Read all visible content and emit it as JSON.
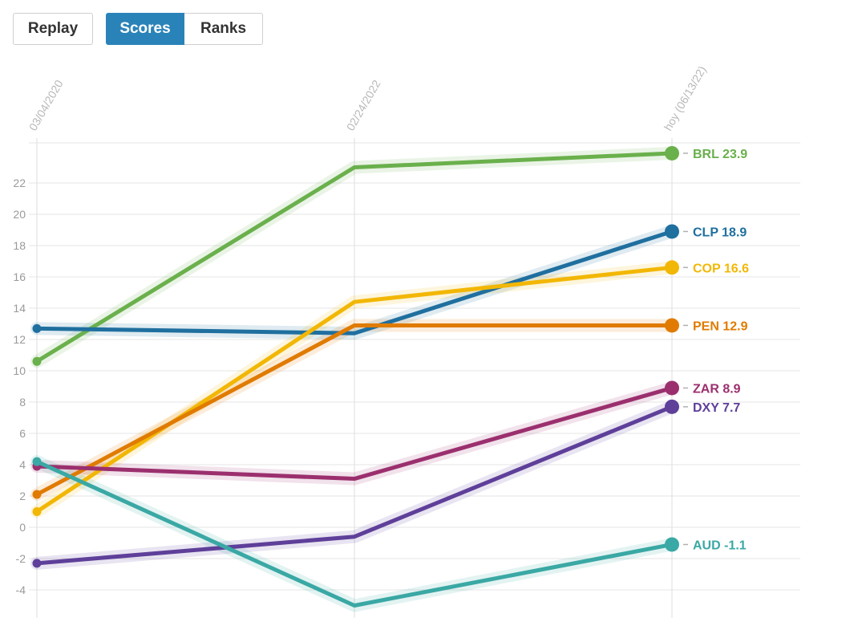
{
  "controls": {
    "replay_label": "Replay",
    "scores_label": "Scores",
    "ranks_label": "Ranks",
    "active_view": "scores"
  },
  "chart_data": {
    "type": "line",
    "x": [
      "03/04/2020",
      "02/24/2022",
      "hoy (06/13/22)"
    ],
    "ylim": [
      -4.5,
      24.5
    ],
    "yticks": [
      -4,
      -2,
      0,
      2,
      4,
      6,
      8,
      10,
      12,
      14,
      16,
      18,
      20,
      22
    ],
    "grid": true,
    "series": [
      {
        "name": "BRL",
        "color": "#6ab04c",
        "values": [
          10.6,
          23.0,
          23.9
        ],
        "label": "BRL 23.9"
      },
      {
        "name": "CLP",
        "color": "#1f6f9f",
        "values": [
          12.7,
          12.4,
          18.9
        ],
        "label": "CLP 18.9"
      },
      {
        "name": "COP",
        "color": "#f2b705",
        "values": [
          1.0,
          14.4,
          16.6
        ],
        "label": "COP 16.6"
      },
      {
        "name": "PEN",
        "color": "#e07b00",
        "values": [
          2.1,
          12.9,
          12.9
        ],
        "label": "PEN 12.9"
      },
      {
        "name": "ZAR",
        "color": "#9b2f6e",
        "values": [
          3.9,
          3.1,
          8.9
        ],
        "label": "ZAR 8.9"
      },
      {
        "name": "DXY",
        "color": "#5e3f99",
        "values": [
          -2.3,
          -0.6,
          7.7
        ],
        "label": "DXY 7.7"
      },
      {
        "name": "AUD",
        "color": "#3aa8a4",
        "values": [
          4.2,
          -5.0,
          -1.1
        ],
        "label": "AUD -1.1"
      }
    ]
  }
}
